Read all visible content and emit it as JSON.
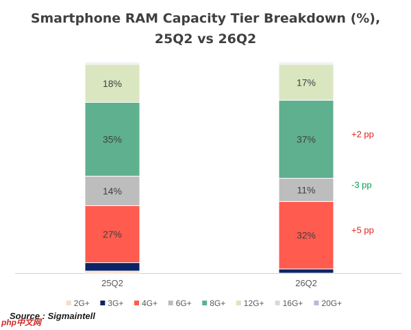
{
  "title_lines": [
    "Smartphone RAM Capacity Tier Breakdown (%),",
    "25Q2 vs 26Q2"
  ],
  "source": "Source : Sigmaintell",
  "watermark": "php中文网",
  "chart_data": {
    "type": "bar",
    "stacked": true,
    "categories": [
      "25Q2",
      "26Q2"
    ],
    "ylim": [
      0,
      100
    ],
    "grid": false,
    "legend_position": "bottom",
    "series": [
      {
        "name": "2G+",
        "color": "#f8dcc7",
        "values": [
          1,
          0
        ]
      },
      {
        "name": "3G+",
        "color": "#0c2466",
        "values": [
          4,
          2
        ]
      },
      {
        "name": "4G+",
        "color": "#ff5b4f",
        "values": [
          27,
          32
        ]
      },
      {
        "name": "6G+",
        "color": "#bdbdbd",
        "values": [
          14,
          11
        ]
      },
      {
        "name": "8G+",
        "color": "#5fb08f",
        "values": [
          35,
          37
        ]
      },
      {
        "name": "12G+",
        "color": "#d9e6c0",
        "values": [
          18,
          17
        ]
      },
      {
        "name": "16G+",
        "color": "#d9d9d9",
        "values": [
          0.6,
          0.6
        ]
      },
      {
        "name": "20G+",
        "color": "#bcb6d9",
        "values": [
          0.4,
          0.4
        ]
      }
    ],
    "data_labels": [
      {
        "category": "25Q2",
        "series": "4G+",
        "text": "27%"
      },
      {
        "category": "25Q2",
        "series": "6G+",
        "text": "14%"
      },
      {
        "category": "25Q2",
        "series": "8G+",
        "text": "35%"
      },
      {
        "category": "25Q2",
        "series": "12G+",
        "text": "18%"
      },
      {
        "category": "26Q2",
        "series": "4G+",
        "text": "32%"
      },
      {
        "category": "26Q2",
        "series": "6G+",
        "text": "11%"
      },
      {
        "category": "26Q2",
        "series": "8G+",
        "text": "37%"
      },
      {
        "category": "26Q2",
        "series": "12G+",
        "text": "17%"
      }
    ],
    "annotations": [
      {
        "series": "8G+",
        "text": "+2 pp",
        "color": "#e02020"
      },
      {
        "series": "6G+",
        "text": "-3 pp",
        "color": "#00a050"
      },
      {
        "series": "4G+",
        "text": "+5 pp",
        "color": "#e02020"
      }
    ]
  }
}
